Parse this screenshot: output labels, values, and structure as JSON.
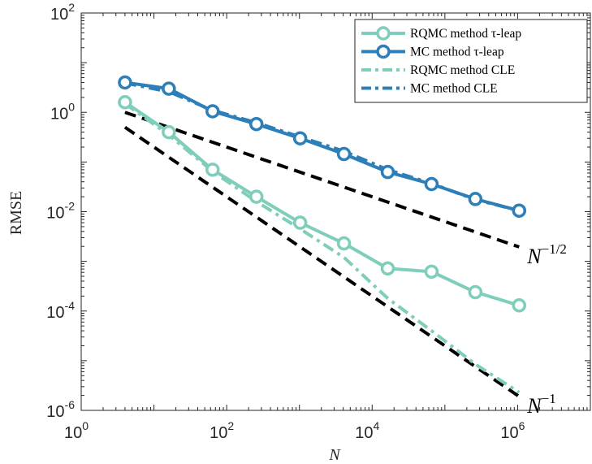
{
  "chart_data": {
    "type": "line",
    "title": "",
    "xlabel": "N",
    "ylabel": "RMSE",
    "xscale": "log",
    "yscale": "log",
    "xlim": [
      1,
      10000000
    ],
    "ylim": [
      1e-06,
      100
    ],
    "grid": false,
    "legend_position": "top-right",
    "x_ticks": [
      {
        "value": 1,
        "base": "10",
        "exp": "0"
      },
      {
        "value": 100,
        "base": "10",
        "exp": "2"
      },
      {
        "value": 10000,
        "base": "10",
        "exp": "4"
      },
      {
        "value": 1000000,
        "base": "10",
        "exp": "6"
      }
    ],
    "y_ticks": [
      {
        "value": 1e-06,
        "base": "10",
        "exp": "-6"
      },
      {
        "value": 0.0001,
        "base": "10",
        "exp": "-4"
      },
      {
        "value": 0.01,
        "base": "10",
        "exp": "-2"
      },
      {
        "value": 1,
        "base": "10",
        "exp": "0"
      },
      {
        "value": 100,
        "base": "10",
        "exp": "2"
      }
    ],
    "series": [
      {
        "name": "RQMC method τ-leap",
        "color": "#7fcdbb",
        "style": "solid-marker",
        "x": [
          4,
          16,
          64,
          256,
          1024,
          4096,
          16384,
          65536,
          262144,
          1048576
        ],
        "y": [
          1.6,
          0.4,
          0.07,
          0.02,
          0.006,
          0.0023,
          0.00072,
          0.00062,
          0.00024,
          0.00013
        ]
      },
      {
        "name": "MC method τ-leap",
        "color": "#2c7fb8",
        "style": "solid-marker",
        "x": [
          4,
          16,
          64,
          256,
          1024,
          4096,
          16384,
          65536,
          262144,
          1048576
        ],
        "y": [
          4.0,
          3.0,
          1.05,
          0.58,
          0.3,
          0.145,
          0.063,
          0.036,
          0.018,
          0.0105
        ]
      },
      {
        "name": "RQMC method CLE",
        "color": "#7fcdbb",
        "style": "dash-dot",
        "x": [
          4,
          16,
          64,
          256,
          1024,
          4096,
          16384,
          65536,
          262144,
          1048576
        ],
        "y": [
          1.5,
          0.35,
          0.065,
          0.016,
          0.0045,
          0.0012,
          0.00018,
          4e-05,
          8.5e-06,
          2.3e-06
        ]
      },
      {
        "name": "MC method CLE",
        "color": "#2c7fb8",
        "style": "dash-dot",
        "x": [
          4,
          16,
          64,
          256,
          1024,
          4096,
          16384,
          65536,
          262144,
          1048576
        ],
        "y": [
          3.9,
          2.6,
          1.1,
          0.62,
          0.32,
          0.165,
          0.07,
          0.037,
          0.0175,
          0.0105
        ]
      }
    ],
    "reference_lines": [
      {
        "label_base": "N",
        "label_exp": "−1/2",
        "x": [
          4,
          1048576
        ],
        "y": [
          1.0,
          0.00195
        ]
      },
      {
        "label_base": "N",
        "label_exp": "−1",
        "x": [
          4,
          1048576
        ],
        "y": [
          0.5,
          1.9e-06
        ]
      }
    ]
  }
}
